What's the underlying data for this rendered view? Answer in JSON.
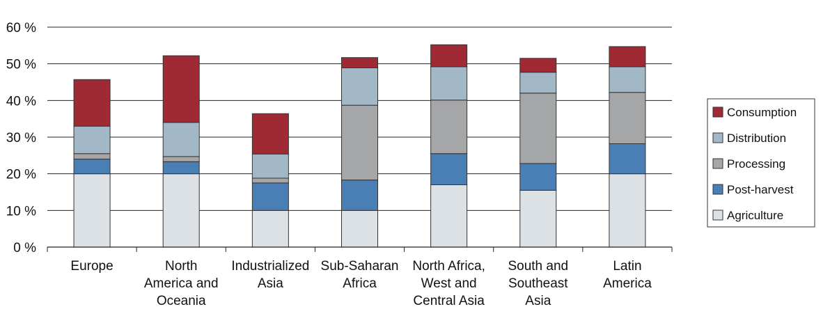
{
  "chart_data": {
    "type": "bar",
    "stacked": true,
    "categories": [
      [
        "Europe"
      ],
      [
        "North",
        "America and",
        "Oceania"
      ],
      [
        "Industrialized",
        "Asia"
      ],
      [
        "Sub-Saharan",
        "Africa"
      ],
      [
        "North Africa,",
        "West and",
        "Central Asia"
      ],
      [
        "South and",
        "Southeast",
        "Asia"
      ],
      [
        "Latin",
        "America"
      ]
    ],
    "series": [
      {
        "name": "Agriculture",
        "color": "#dce1e5",
        "values": [
          20,
          20,
          10,
          10,
          17,
          15.5,
          20
        ]
      },
      {
        "name": "Post-harvest",
        "color": "#4a7fb5",
        "values": [
          4,
          3.3,
          7.5,
          8.3,
          8.5,
          7.3,
          8.2
        ]
      },
      {
        "name": "Processing",
        "color": "#a5a6a8",
        "values": [
          1.5,
          1.4,
          1.3,
          20.4,
          14.6,
          19.2,
          14
        ]
      },
      {
        "name": "Distribution",
        "color": "#a3b8c6",
        "values": [
          7.5,
          9.3,
          6.6,
          10.2,
          9.1,
          5.7,
          7
        ]
      },
      {
        "name": "Consumption",
        "color": "#a02a34",
        "values": [
          12.7,
          18.2,
          11,
          2.8,
          6,
          3.8,
          5.5
        ]
      }
    ],
    "ylim": [
      0,
      60
    ],
    "yticks": [
      0,
      10,
      20,
      30,
      40,
      50,
      60
    ],
    "ytick_labels": [
      "0 %",
      "10 %",
      "20 %",
      "30 %",
      "40 %",
      "50 %",
      "60 %"
    ],
    "grid": true,
    "legend_position": "right",
    "legend_order": [
      "Consumption",
      "Distribution",
      "Processing",
      "Post-harvest",
      "Agriculture"
    ],
    "xlabel": "",
    "ylabel": ""
  }
}
